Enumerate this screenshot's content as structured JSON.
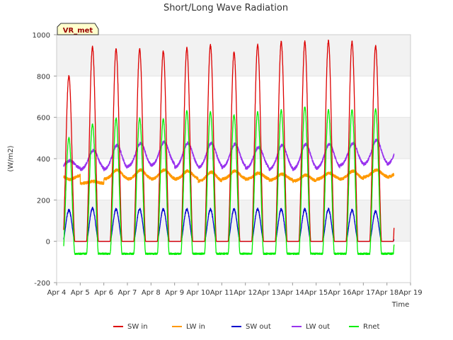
{
  "chart_data": {
    "type": "line",
    "title": "Short/Long Wave Radiation",
    "badge": "VR_met",
    "xlabel": "Time",
    "ylabel": "(W/m2)",
    "xlim": [
      4,
      19
    ],
    "ylim": [
      -200,
      1000
    ],
    "yticks": [
      -200,
      0,
      200,
      400,
      600,
      800,
      1000
    ],
    "xticks": [
      {
        "v": 4,
        "label": "Apr 4"
      },
      {
        "v": 5,
        "label": "Apr 5"
      },
      {
        "v": 6,
        "label": "Apr 6"
      },
      {
        "v": 7,
        "label": "Apr 7"
      },
      {
        "v": 8,
        "label": "Apr 8"
      },
      {
        "v": 9,
        "label": "Apr 9"
      },
      {
        "v": 10,
        "label": "Apr 10"
      },
      {
        "v": 11,
        "label": "Apr 11"
      },
      {
        "v": 12,
        "label": "Apr 12"
      },
      {
        "v": 13,
        "label": "Apr 13"
      },
      {
        "v": 14,
        "label": "Apr 14"
      },
      {
        "v": 15,
        "label": "Apr 15"
      },
      {
        "v": 16,
        "label": "Apr 16"
      },
      {
        "v": 17,
        "label": "Apr 17"
      },
      {
        "v": 18,
        "label": "Apr 18"
      },
      {
        "v": 19,
        "label": "Apr 19"
      }
    ],
    "grid": true,
    "legend_position": "bottom",
    "x_start": 4.3,
    "x_end": 18.3,
    "series": [
      {
        "name": "SW in",
        "color": "#dd0000",
        "daily_peaks": [
          800,
          940,
          930,
          930,
          920,
          935,
          950,
          915,
          950,
          965,
          965,
          970,
          965,
          945
        ],
        "night": 0
      },
      {
        "name": "LW in",
        "color": "#ff9900",
        "day_values": [
          300,
          290,
          345,
          345,
          345,
          340,
          335,
          340,
          330,
          325,
          320,
          330,
          340,
          345
        ],
        "night_values": [
          320,
          280,
          300,
          300,
          300,
          300,
          290,
          300,
          300,
          295,
          290,
          300,
          300,
          310
        ]
      },
      {
        "name": "SW out",
        "color": "#0000cc",
        "daily_peaks": [
          150,
          160,
          155,
          155,
          155,
          155,
          155,
          155,
          155,
          155,
          155,
          155,
          150,
          145
        ],
        "night": 0
      },
      {
        "name": "LW out",
        "color": "#9933ee",
        "day_values": [
          390,
          440,
          465,
          475,
          480,
          475,
          475,
          470,
          455,
          465,
          470,
          470,
          475,
          490
        ],
        "night_values": [
          350,
          345,
          345,
          360,
          365,
          355,
          355,
          355,
          350,
          345,
          345,
          350,
          365,
          370
        ]
      },
      {
        "name": "Rnet",
        "color": "#00ee00",
        "daily_peaks": [
          500,
          565,
          595,
          595,
          590,
          630,
          625,
          610,
          625,
          635,
          650,
          635,
          635,
          640
        ],
        "night": -60
      }
    ]
  }
}
